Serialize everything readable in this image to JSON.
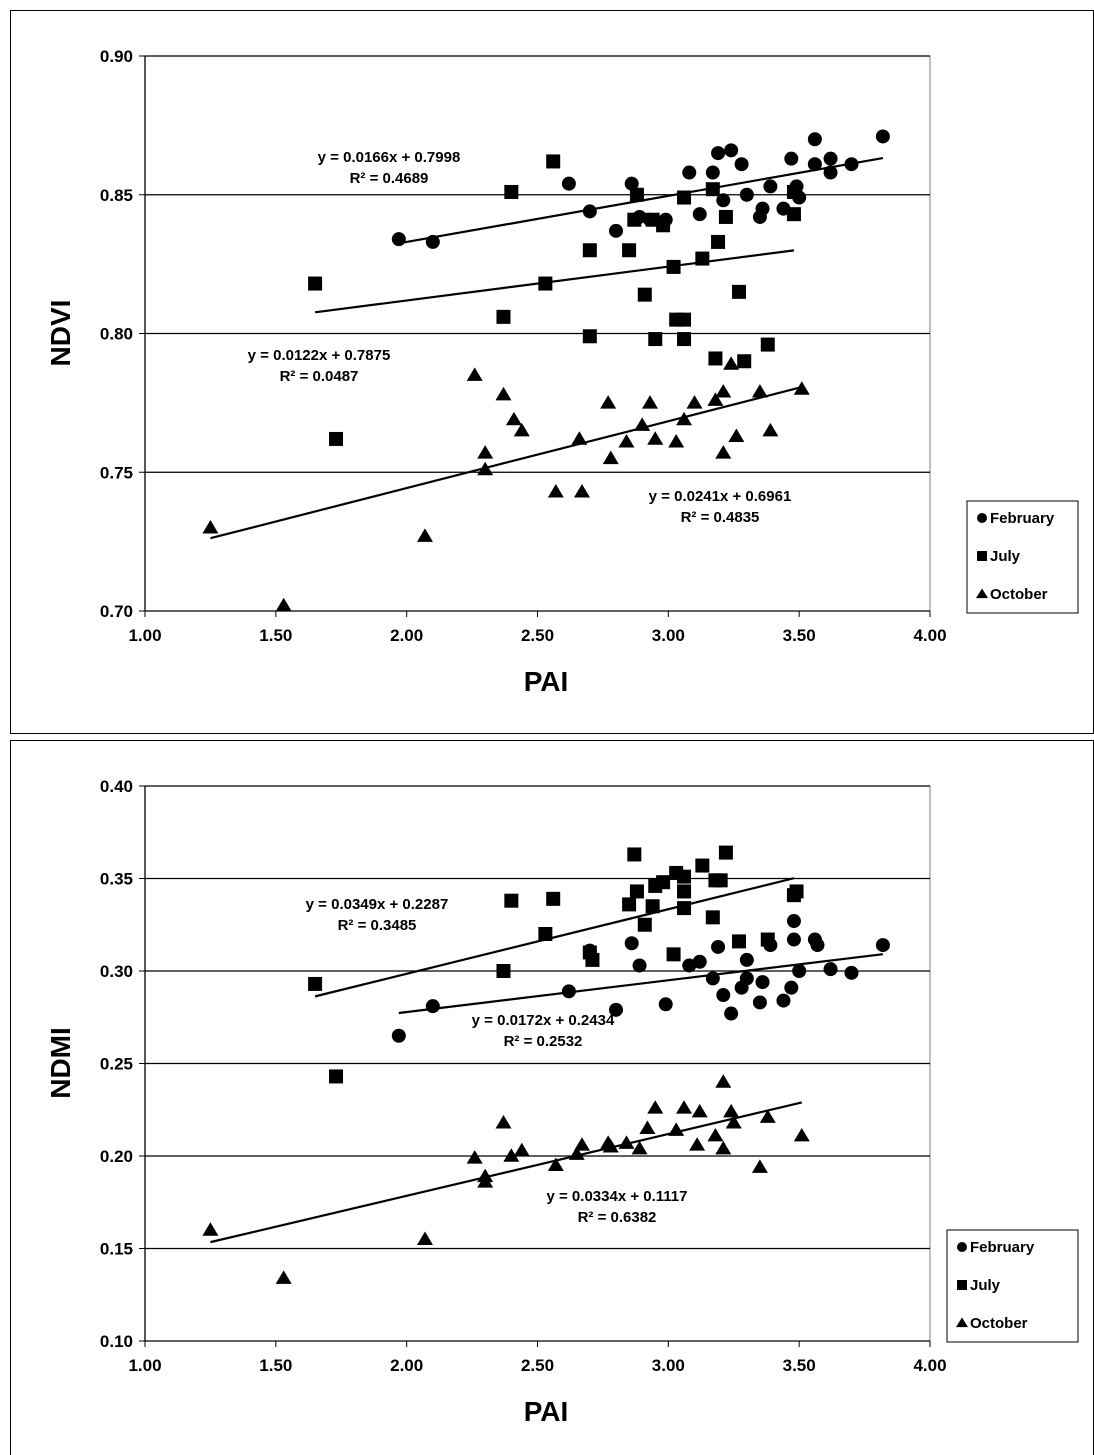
{
  "chart_data": [
    {
      "type": "scatter",
      "xlabel": "PAI",
      "ylabel": "NDVI",
      "xlim": [
        1.0,
        4.0
      ],
      "ylim": [
        0.7,
        0.9
      ],
      "xticks": [
        "1.00",
        "1.50",
        "2.00",
        "2.50",
        "3.00",
        "3.50",
        "4.00"
      ],
      "yticks": [
        "0.70",
        "0.75",
        "0.80",
        "0.85",
        "0.90"
      ],
      "grid": "horizontal",
      "legend": "right",
      "series": [
        {
          "name": "February",
          "marker": "circle",
          "points": [
            [
              1.97,
              0.834
            ],
            [
              2.1,
              0.833
            ],
            [
              2.62,
              0.854
            ],
            [
              2.7,
              0.844
            ],
            [
              2.8,
              0.837
            ],
            [
              2.86,
              0.854
            ],
            [
              2.89,
              0.842
            ],
            [
              2.93,
              0.841
            ],
            [
              2.99,
              0.841
            ],
            [
              3.08,
              0.858
            ],
            [
              3.12,
              0.843
            ],
            [
              3.17,
              0.858
            ],
            [
              3.19,
              0.865
            ],
            [
              3.21,
              0.848
            ],
            [
              3.24,
              0.866
            ],
            [
              3.28,
              0.861
            ],
            [
              3.3,
              0.85
            ],
            [
              3.35,
              0.842
            ],
            [
              3.36,
              0.845
            ],
            [
              3.39,
              0.853
            ],
            [
              3.44,
              0.845
            ],
            [
              3.47,
              0.863
            ],
            [
              3.49,
              0.853
            ],
            [
              3.5,
              0.849
            ],
            [
              3.56,
              0.87
            ],
            [
              3.56,
              0.861
            ],
            [
              3.62,
              0.863
            ],
            [
              3.62,
              0.858
            ],
            [
              3.7,
              0.861
            ],
            [
              3.82,
              0.871
            ]
          ],
          "trend": {
            "x": [
              1.97,
              3.82
            ],
            "slope": 0.0166,
            "intercept": 0.7998,
            "equation": "y = 0.0166x + 0.7998",
            "r2": "R² = 0.4689"
          }
        },
        {
          "name": "July",
          "marker": "square",
          "points": [
            [
              1.65,
              0.818
            ],
            [
              1.73,
              0.762
            ],
            [
              2.37,
              0.806
            ],
            [
              2.4,
              0.851
            ],
            [
              2.53,
              0.818
            ],
            [
              2.56,
              0.862
            ],
            [
              2.7,
              0.83
            ],
            [
              2.7,
              0.799
            ],
            [
              2.85,
              0.83
            ],
            [
              2.87,
              0.841
            ],
            [
              2.88,
              0.85
            ],
            [
              2.91,
              0.814
            ],
            [
              2.94,
              0.841
            ],
            [
              2.95,
              0.798
            ],
            [
              2.98,
              0.839
            ],
            [
              3.02,
              0.824
            ],
            [
              3.03,
              0.805
            ],
            [
              3.06,
              0.849
            ],
            [
              3.06,
              0.805
            ],
            [
              3.06,
              0.798
            ],
            [
              3.13,
              0.827
            ],
            [
              3.17,
              0.852
            ],
            [
              3.18,
              0.791
            ],
            [
              3.19,
              0.833
            ],
            [
              3.22,
              0.842
            ],
            [
              3.27,
              0.815
            ],
            [
              3.29,
              0.79
            ],
            [
              3.38,
              0.796
            ],
            [
              3.48,
              0.843
            ],
            [
              3.48,
              0.851
            ]
          ],
          "trend": {
            "x": [
              1.65,
              3.48
            ],
            "slope": 0.0122,
            "intercept": 0.7875,
            "equation": "y = 0.0122x + 0.7875",
            "r2": "R² = 0.0487"
          }
        },
        {
          "name": "October",
          "marker": "triangle",
          "points": [
            [
              1.25,
              0.73
            ],
            [
              1.53,
              0.702
            ],
            [
              2.07,
              0.727
            ],
            [
              2.26,
              0.785
            ],
            [
              2.3,
              0.757
            ],
            [
              2.3,
              0.751
            ],
            [
              2.37,
              0.778
            ],
            [
              2.41,
              0.769
            ],
            [
              2.44,
              0.765
            ],
            [
              2.57,
              0.743
            ],
            [
              2.66,
              0.762
            ],
            [
              2.67,
              0.743
            ],
            [
              2.77,
              0.775
            ],
            [
              2.78,
              0.755
            ],
            [
              2.84,
              0.761
            ],
            [
              2.9,
              0.767
            ],
            [
              2.93,
              0.775
            ],
            [
              2.95,
              0.762
            ],
            [
              3.03,
              0.761
            ],
            [
              3.06,
              0.769
            ],
            [
              3.1,
              0.775
            ],
            [
              3.18,
              0.776
            ],
            [
              3.21,
              0.779
            ],
            [
              3.21,
              0.757
            ],
            [
              3.24,
              0.789
            ],
            [
              3.26,
              0.763
            ],
            [
              3.35,
              0.779
            ],
            [
              3.39,
              0.765
            ],
            [
              3.51,
              0.78
            ]
          ],
          "trend": {
            "x": [
              1.25,
              3.51
            ],
            "slope": 0.0241,
            "intercept": 0.6961,
            "equation": "y = 0.0241x + 0.6961",
            "r2": "R² = 0.4835"
          }
        }
      ]
    },
    {
      "type": "scatter",
      "xlabel": "PAI",
      "ylabel": "NDMI",
      "xlim": [
        1.0,
        4.0
      ],
      "ylim": [
        0.1,
        0.4
      ],
      "xticks": [
        "1.00",
        "1.50",
        "2.00",
        "2.50",
        "3.00",
        "3.50",
        "4.00"
      ],
      "yticks": [
        "0.10",
        "0.15",
        "0.20",
        "0.25",
        "0.30",
        "0.35",
        "0.40"
      ],
      "grid": "horizontal",
      "legend": "right",
      "series": [
        {
          "name": "February",
          "marker": "circle",
          "points": [
            [
              1.97,
              0.265
            ],
            [
              2.1,
              0.281
            ],
            [
              2.62,
              0.289
            ],
            [
              2.7,
              0.311
            ],
            [
              2.8,
              0.279
            ],
            [
              2.86,
              0.315
            ],
            [
              2.89,
              0.303
            ],
            [
              2.99,
              0.282
            ],
            [
              3.08,
              0.303
            ],
            [
              3.12,
              0.305
            ],
            [
              3.17,
              0.296
            ],
            [
              3.19,
              0.313
            ],
            [
              3.21,
              0.287
            ],
            [
              3.24,
              0.277
            ],
            [
              3.28,
              0.291
            ],
            [
              3.3,
              0.306
            ],
            [
              3.3,
              0.296
            ],
            [
              3.35,
              0.283
            ],
            [
              3.36,
              0.294
            ],
            [
              3.39,
              0.314
            ],
            [
              3.44,
              0.284
            ],
            [
              3.47,
              0.291
            ],
            [
              3.48,
              0.317
            ],
            [
              3.48,
              0.327
            ],
            [
              3.5,
              0.3
            ],
            [
              3.56,
              0.317
            ],
            [
              3.57,
              0.314
            ],
            [
              3.62,
              0.301
            ],
            [
              3.7,
              0.299
            ],
            [
              3.82,
              0.314
            ]
          ],
          "trend": {
            "x": [
              1.97,
              3.82
            ],
            "slope": 0.0172,
            "intercept": 0.2434,
            "equation": "y = 0.0172x + 0.2434",
            "r2": "R² = 0.2532"
          }
        },
        {
          "name": "July",
          "marker": "square",
          "points": [
            [
              1.65,
              0.293
            ],
            [
              1.73,
              0.243
            ],
            [
              2.37,
              0.3
            ],
            [
              2.4,
              0.338
            ],
            [
              2.53,
              0.32
            ],
            [
              2.56,
              0.339
            ],
            [
              2.7,
              0.31
            ],
            [
              2.71,
              0.306
            ],
            [
              2.85,
              0.336
            ],
            [
              2.87,
              0.363
            ],
            [
              2.88,
              0.343
            ],
            [
              2.91,
              0.325
            ],
            [
              2.94,
              0.335
            ],
            [
              2.95,
              0.346
            ],
            [
              2.98,
              0.348
            ],
            [
              3.02,
              0.309
            ],
            [
              3.03,
              0.353
            ],
            [
              3.06,
              0.351
            ],
            [
              3.06,
              0.343
            ],
            [
              3.06,
              0.334
            ],
            [
              3.13,
              0.357
            ],
            [
              3.17,
              0.329
            ],
            [
              3.18,
              0.349
            ],
            [
              3.2,
              0.349
            ],
            [
              3.22,
              0.364
            ],
            [
              3.27,
              0.316
            ],
            [
              3.38,
              0.317
            ],
            [
              3.48,
              0.341
            ],
            [
              3.49,
              0.343
            ]
          ],
          "trend": {
            "x": [
              1.65,
              3.48
            ],
            "slope": 0.0349,
            "intercept": 0.2287,
            "equation": "y = 0.0349x + 0.2287",
            "r2": "R² = 0.3485"
          }
        },
        {
          "name": "October",
          "marker": "triangle",
          "points": [
            [
              1.25,
              0.16
            ],
            [
              1.53,
              0.134
            ],
            [
              2.07,
              0.155
            ],
            [
              2.26,
              0.199
            ],
            [
              2.3,
              0.189
            ],
            [
              2.3,
              0.186
            ],
            [
              2.37,
              0.218
            ],
            [
              2.4,
              0.2
            ],
            [
              2.44,
              0.203
            ],
            [
              2.57,
              0.195
            ],
            [
              2.65,
              0.201
            ],
            [
              2.67,
              0.206
            ],
            [
              2.77,
              0.207
            ],
            [
              2.78,
              0.205
            ],
            [
              2.84,
              0.207
            ],
            [
              2.89,
              0.204
            ],
            [
              2.92,
              0.215
            ],
            [
              2.95,
              0.226
            ],
            [
              3.03,
              0.214
            ],
            [
              3.06,
              0.226
            ],
            [
              3.11,
              0.206
            ],
            [
              3.12,
              0.224
            ],
            [
              3.18,
              0.211
            ],
            [
              3.21,
              0.24
            ],
            [
              3.21,
              0.204
            ],
            [
              3.24,
              0.224
            ],
            [
              3.25,
              0.218
            ],
            [
              3.35,
              0.194
            ],
            [
              3.38,
              0.221
            ],
            [
              3.51,
              0.211
            ]
          ],
          "trend": {
            "x": [
              1.25,
              3.51
            ],
            "slope": 0.0334,
            "intercept": 0.1117,
            "equation": "y = 0.0334x + 0.1117",
            "r2": "R² = 0.6382"
          }
        }
      ]
    }
  ]
}
